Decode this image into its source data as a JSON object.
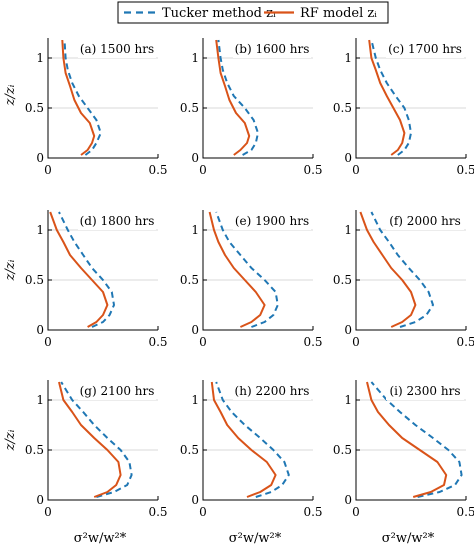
{
  "legend": {
    "tucker": "Tucker method zᵢ",
    "rf": "RF model zᵢ",
    "position": "top-center"
  },
  "colors": {
    "tucker": "#1f77b4",
    "rf": "#d95319"
  },
  "ylabel": "z/zᵢ",
  "xlabel": "σ²w/w²*",
  "chart_data": [
    {
      "type": "line",
      "title": "(a) 1500 hrs",
      "xlim": [
        0,
        0.5
      ],
      "ylim": [
        0,
        1.2
      ],
      "xticks": [
        0,
        0.5
      ],
      "yticks": [
        0,
        0.5,
        1
      ],
      "grid": "y",
      "series": [
        {
          "name": "Tucker method zᵢ",
          "style": "dashed",
          "x": [
            0.17,
            0.2,
            0.22,
            0.24,
            0.22,
            0.18,
            0.14,
            0.11,
            0.09,
            0.08,
            0.075
          ],
          "y": [
            0.03,
            0.08,
            0.15,
            0.25,
            0.38,
            0.5,
            0.62,
            0.75,
            0.88,
            1.0,
            1.18
          ]
        },
        {
          "name": "RF model zᵢ",
          "style": "solid",
          "x": [
            0.15,
            0.18,
            0.2,
            0.21,
            0.19,
            0.15,
            0.12,
            0.1,
            0.08,
            0.07,
            0.065
          ],
          "y": [
            0.03,
            0.08,
            0.15,
            0.22,
            0.35,
            0.45,
            0.58,
            0.72,
            0.85,
            1.0,
            1.18
          ]
        }
      ]
    },
    {
      "type": "line",
      "title": "(b) 1600 hrs",
      "xlim": [
        0,
        0.5
      ],
      "ylim": [
        0,
        1.2
      ],
      "xticks": [
        0,
        0.5
      ],
      "yticks": [
        0,
        0.5,
        1
      ],
      "grid": "y",
      "series": [
        {
          "name": "Tucker method zᵢ",
          "style": "dashed",
          "x": [
            0.18,
            0.22,
            0.24,
            0.25,
            0.23,
            0.19,
            0.14,
            0.11,
            0.09,
            0.08,
            0.07
          ],
          "y": [
            0.03,
            0.08,
            0.15,
            0.25,
            0.38,
            0.5,
            0.62,
            0.75,
            0.88,
            1.0,
            1.18
          ]
        },
        {
          "name": "RF model zᵢ",
          "style": "solid",
          "x": [
            0.14,
            0.17,
            0.2,
            0.21,
            0.19,
            0.15,
            0.12,
            0.1,
            0.08,
            0.07,
            0.06
          ],
          "y": [
            0.03,
            0.08,
            0.15,
            0.22,
            0.35,
            0.45,
            0.58,
            0.72,
            0.85,
            1.0,
            1.18
          ]
        }
      ]
    },
    {
      "type": "line",
      "title": "(c) 1700 hrs",
      "xlim": [
        0,
        0.5
      ],
      "ylim": [
        0,
        1.2
      ],
      "xticks": [
        0,
        0.5
      ],
      "yticks": [
        0,
        0.5,
        1
      ],
      "grid": "y",
      "series": [
        {
          "name": "Tucker method zᵢ",
          "style": "dashed",
          "x": [
            0.19,
            0.22,
            0.24,
            0.25,
            0.24,
            0.22,
            0.18,
            0.14,
            0.11,
            0.09,
            0.07
          ],
          "y": [
            0.03,
            0.08,
            0.15,
            0.25,
            0.38,
            0.5,
            0.62,
            0.75,
            0.88,
            1.0,
            1.18
          ]
        },
        {
          "name": "RF model zᵢ",
          "style": "solid",
          "x": [
            0.16,
            0.19,
            0.21,
            0.22,
            0.2,
            0.17,
            0.14,
            0.11,
            0.09,
            0.07,
            0.06
          ],
          "y": [
            0.03,
            0.08,
            0.15,
            0.25,
            0.38,
            0.5,
            0.62,
            0.75,
            0.88,
            1.0,
            1.18
          ]
        }
      ]
    },
    {
      "type": "line",
      "title": "(d) 1800 hrs",
      "xlim": [
        0,
        0.5
      ],
      "ylim": [
        0,
        1.2
      ],
      "xticks": [
        0,
        0.5
      ],
      "yticks": [
        0,
        0.5,
        1
      ],
      "grid": "y",
      "series": [
        {
          "name": "Tucker method zᵢ",
          "style": "dashed",
          "x": [
            0.2,
            0.25,
            0.28,
            0.3,
            0.29,
            0.25,
            0.2,
            0.16,
            0.12,
            0.09,
            0.05
          ],
          "y": [
            0.03,
            0.08,
            0.15,
            0.25,
            0.38,
            0.5,
            0.62,
            0.75,
            0.88,
            1.0,
            1.18
          ]
        },
        {
          "name": "RF model zᵢ",
          "style": "solid",
          "x": [
            0.18,
            0.22,
            0.25,
            0.27,
            0.25,
            0.2,
            0.15,
            0.1,
            0.07,
            0.04,
            0.01
          ],
          "y": [
            0.03,
            0.08,
            0.15,
            0.25,
            0.38,
            0.5,
            0.62,
            0.75,
            0.88,
            1.0,
            1.18
          ]
        }
      ]
    },
    {
      "type": "line",
      "title": "(e) 1900 hrs",
      "xlim": [
        0,
        0.5
      ],
      "ylim": [
        0,
        1.2
      ],
      "xticks": [
        0,
        0.5
      ],
      "yticks": [
        0,
        0.5,
        1
      ],
      "grid": "y",
      "series": [
        {
          "name": "Tucker method zᵢ",
          "style": "dashed",
          "x": [
            0.22,
            0.28,
            0.32,
            0.34,
            0.33,
            0.28,
            0.22,
            0.17,
            0.12,
            0.09,
            0.06
          ],
          "y": [
            0.03,
            0.08,
            0.15,
            0.25,
            0.38,
            0.5,
            0.62,
            0.75,
            0.88,
            1.0,
            1.18
          ]
        },
        {
          "name": "RF model zᵢ",
          "style": "solid",
          "x": [
            0.17,
            0.22,
            0.26,
            0.28,
            0.24,
            0.19,
            0.14,
            0.1,
            0.07,
            0.05,
            0.03
          ],
          "y": [
            0.03,
            0.08,
            0.15,
            0.25,
            0.38,
            0.5,
            0.62,
            0.75,
            0.88,
            1.0,
            1.18
          ]
        }
      ]
    },
    {
      "type": "line",
      "title": "(f) 2000 hrs",
      "xlim": [
        0,
        0.5
      ],
      "ylim": [
        0,
        1.2
      ],
      "xticks": [
        0,
        0.5
      ],
      "yticks": [
        0,
        0.5,
        1
      ],
      "grid": "y",
      "series": [
        {
          "name": "Tucker method zᵢ",
          "style": "dashed",
          "x": [
            0.2,
            0.27,
            0.32,
            0.35,
            0.33,
            0.29,
            0.24,
            0.19,
            0.15,
            0.11,
            0.07
          ],
          "y": [
            0.03,
            0.08,
            0.15,
            0.25,
            0.38,
            0.5,
            0.62,
            0.75,
            0.88,
            1.0,
            1.18
          ]
        },
        {
          "name": "RF model zᵢ",
          "style": "solid",
          "x": [
            0.16,
            0.21,
            0.25,
            0.27,
            0.25,
            0.21,
            0.16,
            0.12,
            0.08,
            0.05,
            0.02
          ],
          "y": [
            0.03,
            0.08,
            0.15,
            0.25,
            0.38,
            0.5,
            0.62,
            0.75,
            0.88,
            1.0,
            1.18
          ]
        }
      ]
    },
    {
      "type": "line",
      "title": "(g) 2100 hrs",
      "xlim": [
        0,
        0.5
      ],
      "ylim": [
        0,
        1.2
      ],
      "xticks": [
        0,
        0.5
      ],
      "yticks": [
        0,
        0.5,
        1
      ],
      "grid": "y",
      "series": [
        {
          "name": "Tucker method zᵢ",
          "style": "dashed",
          "x": [
            0.22,
            0.3,
            0.36,
            0.38,
            0.37,
            0.33,
            0.27,
            0.21,
            0.16,
            0.11,
            0.06
          ],
          "y": [
            0.03,
            0.08,
            0.15,
            0.25,
            0.38,
            0.5,
            0.62,
            0.75,
            0.88,
            1.0,
            1.18
          ]
        },
        {
          "name": "RF model zᵢ",
          "style": "solid",
          "x": [
            0.21,
            0.27,
            0.31,
            0.33,
            0.32,
            0.27,
            0.21,
            0.15,
            0.11,
            0.07,
            0.05
          ],
          "y": [
            0.03,
            0.08,
            0.15,
            0.25,
            0.38,
            0.5,
            0.62,
            0.75,
            0.88,
            1.0,
            1.18
          ]
        }
      ]
    },
    {
      "type": "line",
      "title": "(h) 2200 hrs",
      "xlim": [
        0,
        0.5
      ],
      "ylim": [
        0,
        1.2
      ],
      "xticks": [
        0,
        0.5
      ],
      "yticks": [
        0,
        0.5,
        1
      ],
      "grid": "y",
      "series": [
        {
          "name": "Tucker method zᵢ",
          "style": "dashed",
          "x": [
            0.24,
            0.31,
            0.36,
            0.39,
            0.37,
            0.32,
            0.26,
            0.19,
            0.13,
            0.09,
            0.06
          ],
          "y": [
            0.03,
            0.08,
            0.15,
            0.25,
            0.38,
            0.5,
            0.62,
            0.75,
            0.88,
            1.0,
            1.18
          ]
        },
        {
          "name": "RF model zᵢ",
          "style": "solid",
          "x": [
            0.2,
            0.26,
            0.31,
            0.33,
            0.29,
            0.22,
            0.16,
            0.11,
            0.08,
            0.05,
            0.04
          ],
          "y": [
            0.03,
            0.08,
            0.15,
            0.25,
            0.38,
            0.5,
            0.62,
            0.75,
            0.88,
            1.0,
            1.18
          ]
        }
      ]
    },
    {
      "type": "line",
      "title": "(i) 2300 hrs",
      "xlim": [
        0,
        0.5
      ],
      "ylim": [
        0,
        1.2
      ],
      "xticks": [
        0,
        0.5
      ],
      "yticks": [
        0,
        0.5,
        1
      ],
      "grid": "y",
      "series": [
        {
          "name": "Tucker method zᵢ",
          "style": "dashed",
          "x": [
            0.28,
            0.38,
            0.45,
            0.48,
            0.47,
            0.42,
            0.35,
            0.27,
            0.2,
            0.14,
            0.07
          ],
          "y": [
            0.03,
            0.08,
            0.15,
            0.25,
            0.38,
            0.5,
            0.62,
            0.75,
            0.88,
            1.0,
            1.18
          ]
        },
        {
          "name": "RF model zᵢ",
          "style": "solid",
          "x": [
            0.26,
            0.34,
            0.4,
            0.41,
            0.37,
            0.29,
            0.21,
            0.15,
            0.1,
            0.07,
            0.05
          ],
          "y": [
            0.03,
            0.08,
            0.15,
            0.25,
            0.38,
            0.5,
            0.62,
            0.75,
            0.88,
            1.0,
            1.18
          ]
        }
      ]
    }
  ]
}
